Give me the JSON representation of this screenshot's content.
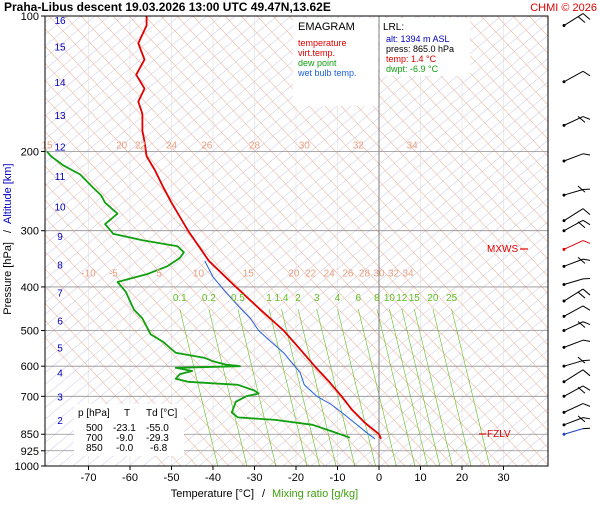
{
  "header": {
    "title": "Praha-Libus   descent   19.03.2026 13:00 UTC  49.47N,13.62E",
    "copyright": "CHMI © 2026"
  },
  "legend": {
    "title": "EMAGRAM",
    "items": [
      {
        "label": "temperature",
        "color": "#e00000"
      },
      {
        "label": "virt.temp.",
        "color": "#e00000"
      },
      {
        "label": "dew point",
        "color": "#10a010"
      },
      {
        "label": "wet bulb temp.",
        "color": "#2060e0"
      }
    ]
  },
  "lrl": {
    "title": "LRL:",
    "lines": [
      {
        "text": "alt: 1394 m ASL",
        "color": "#0000c0"
      },
      {
        "text": "press: 865.0 hPa",
        "color": "#000000"
      },
      {
        "text": "temp: 1.4 °C",
        "color": "#e00000"
      },
      {
        "text": "dwpt: -6.9 °C",
        "color": "#10a010"
      }
    ]
  },
  "levels_table": {
    "headers": [
      "p [hPa]",
      "T",
      "Td [°C]"
    ],
    "rows": [
      [
        "500",
        "-23.1",
        "-55.0"
      ],
      [
        "700",
        "-9.0",
        "-29.3"
      ],
      [
        "850",
        "-0.0",
        "-6.8"
      ]
    ]
  },
  "markers": {
    "mxws": "MXWS",
    "fzlv": "FZLV"
  },
  "chart_data": {
    "type": "line",
    "xlabel": "Temperature [°C]",
    "xlabel_secondary": "Mixing ratio [g/kg]",
    "ylabel": "Pressure [hPa]",
    "ylabel_secondary": "Altitude [km]",
    "xlim": [
      -80,
      40
    ],
    "ylim": [
      1000,
      100
    ],
    "y_scale": "log",
    "grid": true,
    "x_ticks": [
      "-70",
      "-60",
      "-50",
      "-40",
      "-30",
      "-20",
      "-10",
      "0",
      "10",
      "20",
      "30"
    ],
    "x_tick_values": [
      -70,
      -60,
      -50,
      -40,
      -30,
      -20,
      -10,
      0,
      10,
      20,
      30
    ],
    "y_ticks": [
      "100",
      "200",
      "300",
      "400",
      "500",
      "600",
      "700",
      "850",
      "925",
      "1000"
    ],
    "y_tick_values": [
      100,
      200,
      300,
      400,
      500,
      600,
      700,
      850,
      925,
      1000
    ],
    "altitude_ticks": [
      "2",
      "3",
      "4",
      "5",
      "6",
      "7",
      "8",
      "9",
      "10",
      "11",
      "12",
      "13",
      "14",
      "15",
      "16"
    ],
    "altitude_tick_pressures": [
      790,
      700,
      620,
      545,
      475,
      412,
      357,
      308,
      265,
      227,
      195,
      166,
      140,
      117,
      102
    ],
    "dry_adiabat_labels": {
      "row_200": {
        "pressure": 200,
        "labels": [
          "15",
          "20",
          "22",
          "24",
          "26",
          "28",
          "30",
          "32",
          "34"
        ],
        "x": [
          -80,
          -62,
          -57.5,
          -50,
          -41.5,
          -30,
          -18,
          -5,
          8
        ]
      },
      "row_385": {
        "pressure": 385,
        "labels": [
          "-10",
          "-5",
          "5",
          "10",
          "15",
          "20",
          "22",
          "24",
          "26",
          "28",
          "30",
          "32",
          "34"
        ],
        "x": [
          -70,
          -64,
          -53,
          -43.5,
          -31.5,
          -20.5,
          -16.5,
          -12,
          -7.5,
          -3.5,
          0,
          3.5,
          7
        ]
      }
    },
    "mixing_ratio_labels": {
      "pressure": 430,
      "labels": [
        "0.1",
        "0.2",
        "0.5",
        "1",
        "1.4",
        "2",
        "3",
        "4",
        "6",
        "8",
        "10",
        "12",
        "15",
        "20",
        "25"
      ],
      "x": [
        -48,
        -41,
        -34,
        -26.5,
        -23.5,
        -19.5,
        -15,
        -10,
        -5,
        -0.5,
        2.5,
        5.5,
        8.5,
        13,
        17.5
      ]
    },
    "series": [
      {
        "name": "temperature",
        "color": "#e00000",
        "points": [
          [
            870,
            0.5
          ],
          [
            850,
            0
          ],
          [
            800,
            -3.5
          ],
          [
            750,
            -6.5
          ],
          [
            700,
            -9
          ],
          [
            650,
            -12
          ],
          [
            600,
            -15.5
          ],
          [
            550,
            -19
          ],
          [
            500,
            -23
          ],
          [
            450,
            -28.5
          ],
          [
            400,
            -34.5
          ],
          [
            350,
            -41
          ],
          [
            300,
            -46
          ],
          [
            260,
            -50
          ],
          [
            240,
            -52
          ],
          [
            220,
            -54
          ],
          [
            205,
            -56
          ],
          [
            190,
            -56.5
          ],
          [
            180,
            -57
          ],
          [
            165,
            -57
          ],
          [
            155,
            -58
          ],
          [
            145,
            -56.5
          ],
          [
            135,
            -58.5
          ],
          [
            125,
            -56.5
          ],
          [
            115,
            -58
          ],
          [
            105,
            -56
          ],
          [
            100,
            -56
          ]
        ]
      },
      {
        "name": "dew point",
        "color": "#10a010",
        "points": [
          [
            865,
            -7
          ],
          [
            840,
            -11
          ],
          [
            810,
            -16
          ],
          [
            790,
            -25
          ],
          [
            780,
            -34
          ],
          [
            760,
            -35.5
          ],
          [
            740,
            -35
          ],
          [
            720,
            -34.5
          ],
          [
            700,
            -32
          ],
          [
            690,
            -29
          ],
          [
            680,
            -30
          ],
          [
            670,
            -32
          ],
          [
            660,
            -34
          ],
          [
            650,
            -46
          ],
          [
            640,
            -49
          ],
          [
            625,
            -48
          ],
          [
            615,
            -45
          ],
          [
            605,
            -49
          ],
          [
            600,
            -33.5
          ],
          [
            595,
            -37
          ],
          [
            585,
            -40
          ],
          [
            575,
            -42
          ],
          [
            560,
            -49
          ],
          [
            550,
            -50
          ],
          [
            530,
            -52
          ],
          [
            510,
            -55
          ],
          [
            490,
            -56
          ],
          [
            470,
            -57
          ],
          [
            450,
            -59
          ],
          [
            430,
            -60
          ],
          [
            410,
            -61
          ],
          [
            390,
            -63
          ],
          [
            375,
            -56
          ],
          [
            360,
            -51
          ],
          [
            345,
            -48
          ],
          [
            335,
            -47
          ],
          [
            325,
            -48.5
          ],
          [
            315,
            -57
          ],
          [
            305,
            -64
          ],
          [
            290,
            -66
          ],
          [
            275,
            -63
          ],
          [
            260,
            -66
          ],
          [
            250,
            -67
          ],
          [
            240,
            -69
          ],
          [
            225,
            -72
          ],
          [
            215,
            -76
          ],
          [
            205,
            -79
          ],
          [
            200,
            -80
          ]
        ]
      },
      {
        "name": "wet bulb temp.",
        "color": "#2060e0",
        "points": [
          [
            870,
            -1
          ],
          [
            850,
            -2.5
          ],
          [
            800,
            -6
          ],
          [
            760,
            -9
          ],
          [
            730,
            -11.5
          ],
          [
            700,
            -15
          ],
          [
            660,
            -18
          ],
          [
            620,
            -19
          ],
          [
            590,
            -21
          ],
          [
            560,
            -23
          ],
          [
            530,
            -26
          ],
          [
            500,
            -29
          ],
          [
            470,
            -31
          ],
          [
            440,
            -34
          ],
          [
            410,
            -37
          ],
          [
            380,
            -40
          ],
          [
            350,
            -42
          ]
        ]
      }
    ]
  },
  "wind_profile": {
    "pressures": [
      105,
      140,
      175,
      210,
      250,
      285,
      300,
      330,
      360,
      395,
      430,
      465,
      500,
      545,
      600,
      650,
      700,
      760,
      810,
      850
    ]
  }
}
